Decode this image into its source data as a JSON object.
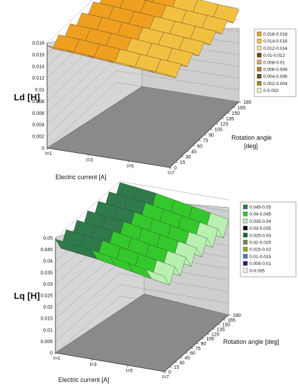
{
  "charts": [
    {
      "id": "ld",
      "zlabel": "Ld [H]",
      "xlabel": "Electric current [A]",
      "ylabel_line1": "Rotation angle",
      "ylabel_line2": "[deg]"
    },
    {
      "id": "lq",
      "zlabel": "Lq [H]",
      "xlabel": "Electric current [A]",
      "ylabel_line1": "Rotation angle [deg]",
      "ylabel_line2": ""
    }
  ],
  "chart_data": [
    {
      "type": "surface",
      "zlabel": "Ld [H]",
      "xlabel": "Electric current [A]",
      "ylabel": "Rotation angle [deg]",
      "x_categories": [
        "I=1",
        "I=3",
        "I=5",
        "I=7"
      ],
      "y_ticks": [
        0,
        15,
        30,
        45,
        60,
        75,
        90,
        105,
        120,
        135,
        150,
        165,
        180
      ],
      "zlim": [
        0,
        0.018
      ],
      "z_ticks": [
        0,
        0.002,
        0.004,
        0.006,
        0.008,
        0.01,
        0.012,
        0.014,
        0.016,
        0.018
      ],
      "z_tick_labels": [
        "0",
        "0.002",
        "0.004",
        "0.006",
        "0.008",
        "0.01",
        "0.012",
        "0.014",
        "0.016",
        "0.018"
      ],
      "legend": [
        "0.016-0.018",
        "0.014-0.016",
        "0.012-0.014",
        "0.01-0.012",
        "0.008-0.01",
        "0.006-0.008",
        "0.004-0.006",
        "0.002-0.004",
        "0-0.002"
      ],
      "legend_colors": [
        "#f0a020",
        "#f2c040",
        "#f6dfa0",
        "#7a4a05",
        "#d8b060",
        "#b87a2a",
        "#70520c",
        "#a88428",
        "#f8ecc8"
      ],
      "legend_position": "right",
      "surface": {
        "angle_grid": [
          0,
          15,
          30,
          45,
          60,
          75,
          90,
          105,
          120,
          135,
          150,
          165,
          180
        ],
        "current_grid": [
          1,
          2,
          3,
          4,
          5,
          6,
          7
        ],
        "base": [
          0.0168,
          0.0166,
          0.0163,
          0.016,
          0.0157,
          0.0154,
          0.0151
        ],
        "ripple": 0.0007,
        "period_deg": 30
      }
    },
    {
      "type": "surface",
      "zlabel": "Lq [H]",
      "xlabel": "Electric current [A]",
      "ylabel": "Rotation angle [deg]",
      "x_categories": [
        "I=1",
        "I=3",
        "I=5",
        "I=7"
      ],
      "y_ticks": [
        0,
        15,
        30,
        45,
        60,
        75,
        90,
        105,
        120,
        135,
        150,
        165,
        180
      ],
      "zlim": [
        0,
        0.05
      ],
      "z_ticks": [
        0,
        0.005,
        0.01,
        0.015,
        0.02,
        0.025,
        0.03,
        0.035,
        0.04,
        0.045,
        0.05
      ],
      "z_tick_labels": [
        "0",
        "0.005",
        "0.01",
        "0.015",
        "0.02",
        "0.025",
        "0.03",
        "0.035",
        "0.04",
        "0.045",
        "0.05"
      ],
      "legend": [
        "0.045-0.05",
        "0.04-0.045",
        "0.035-0.04",
        "0.03-0.035",
        "0.025-0.03",
        "0.02-0.025",
        "0.015-0.02",
        "0.01-0.015",
        "0.005-0.01",
        "0-0.005"
      ],
      "legend_colors": [
        "#2f7a4a",
        "#34c82c",
        "#b8f0b0",
        "#0a1a0a",
        "#1e6a2a",
        "#7a8a4a",
        "#8aa82a",
        "#4a7ab8",
        "#2a1a7a",
        "#e8f6e8"
      ],
      "legend_position": "right",
      "surface": {
        "angle_grid": [
          0,
          15,
          30,
          45,
          60,
          75,
          90,
          105,
          120,
          135,
          150,
          165,
          180
        ],
        "current_grid": [
          1,
          2,
          3,
          4,
          5,
          6,
          7
        ],
        "base": [
          0.0465,
          0.0455,
          0.0445,
          0.043,
          0.0415,
          0.04,
          0.0385
        ],
        "ripple": 0.003,
        "period_deg": 30
      }
    }
  ]
}
